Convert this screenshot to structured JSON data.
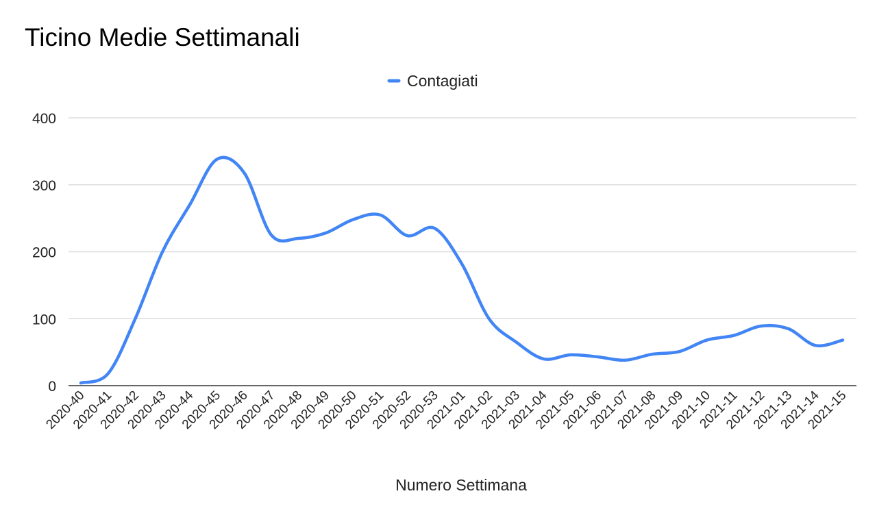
{
  "chart_data": {
    "type": "line",
    "title": "Ticino Medie Settimanali",
    "xlabel": "Numero Settimana",
    "ylabel": "",
    "ylim": [
      0,
      400
    ],
    "yticks": [
      0,
      100,
      200,
      300,
      400
    ],
    "grid": true,
    "legend_position": "top-center",
    "categories": [
      "2020-40",
      "2020-41",
      "2020-42",
      "2020-43",
      "2020-44",
      "2020-45",
      "2020-46",
      "2020-47",
      "2020-48",
      "2020-49",
      "2020-50",
      "2020-51",
      "2020-52",
      "2020-53",
      "2021-01",
      "2021-02",
      "2021-03",
      "2021-04",
      "2021-05",
      "2021-06",
      "2021-07",
      "2021-08",
      "2021-09",
      "2021-10",
      "2021-11",
      "2021-12",
      "2021-13",
      "2021-14",
      "2021-15"
    ],
    "series": [
      {
        "name": "Contagiati",
        "color": "#4285f4",
        "values": [
          4,
          18,
          100,
          200,
          270,
          338,
          318,
          225,
          220,
          228,
          248,
          255,
          224,
          235,
          182,
          100,
          65,
          40,
          46,
          43,
          38,
          47,
          51,
          68,
          75,
          89,
          85,
          60,
          68
        ]
      }
    ]
  }
}
